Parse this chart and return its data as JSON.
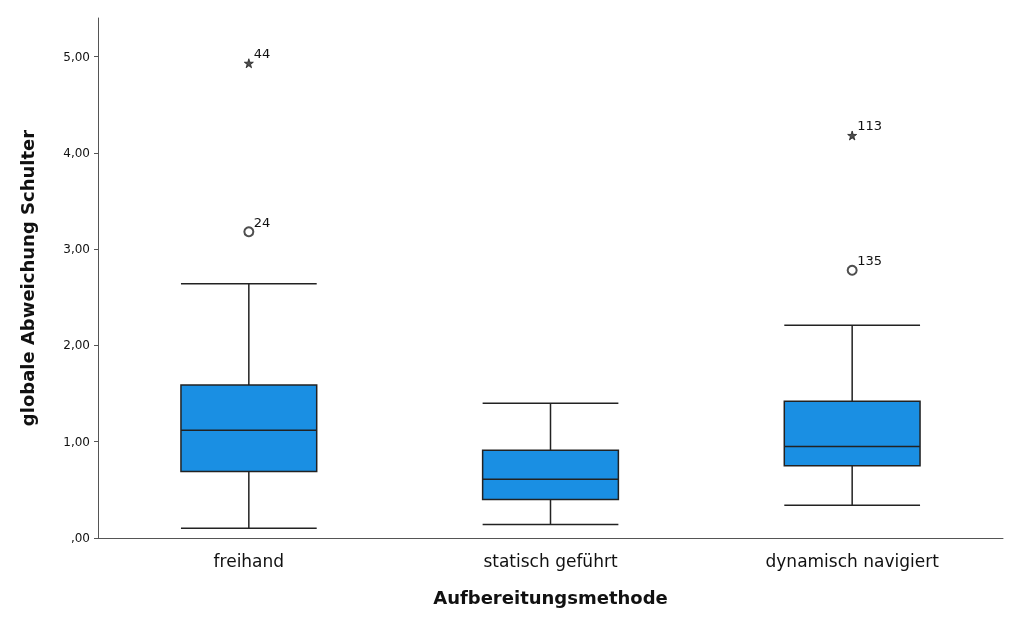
{
  "chart_data": {
    "type": "box",
    "xlabel": "Aufbereitungsmethode",
    "ylabel": "globale Abweichung Schulter",
    "categories": [
      "freihand",
      "statisch geführt",
      "dynamisch navigiert"
    ],
    "series": [
      {
        "color": "#1a8fe3",
        "boxes": [
          {
            "low": 0.1,
            "q1": 0.69,
            "median": 1.12,
            "q3": 1.59,
            "high": 2.64
          },
          {
            "low": 0.14,
            "q1": 0.4,
            "median": 0.61,
            "q3": 0.91,
            "high": 1.4
          },
          {
            "low": 0.34,
            "q1": 0.75,
            "median": 0.95,
            "q3": 1.42,
            "high": 2.21
          }
        ]
      },
      {
        "type": "scatter",
        "marker": "circle",
        "color": "#222222",
        "x": [
          "freihand",
          "dynamisch navigiert"
        ],
        "values": [
          3.18,
          2.78
        ]
      },
      {
        "type": "scatter",
        "marker": "star",
        "color": "#222222",
        "x": [
          "freihand",
          "dynamisch navigiert"
        ],
        "values": [
          4.93,
          4.18
        ]
      }
    ],
    "ylim": [
      0,
      5.4
    ],
    "yticks": [
      {
        "value": 0,
        "label": ",00"
      },
      {
        "value": 1,
        "label": "1,00"
      },
      {
        "value": 2,
        "label": "2,00"
      },
      {
        "value": 3,
        "label": "3,00"
      },
      {
        "value": 4,
        "label": "4,00"
      },
      {
        "value": 5,
        "label": "5,00"
      }
    ],
    "grid": false,
    "annotations": [
      {
        "text": "44",
        "x": "freihand",
        "y": 4.93
      },
      {
        "text": "24",
        "x": "freihand",
        "y": 3.18
      },
      {
        "text": "113",
        "x": "dynamisch navigiert",
        "y": 4.18
      },
      {
        "text": "135",
        "x": "dynamisch navigiert",
        "y": 2.78
      }
    ]
  }
}
